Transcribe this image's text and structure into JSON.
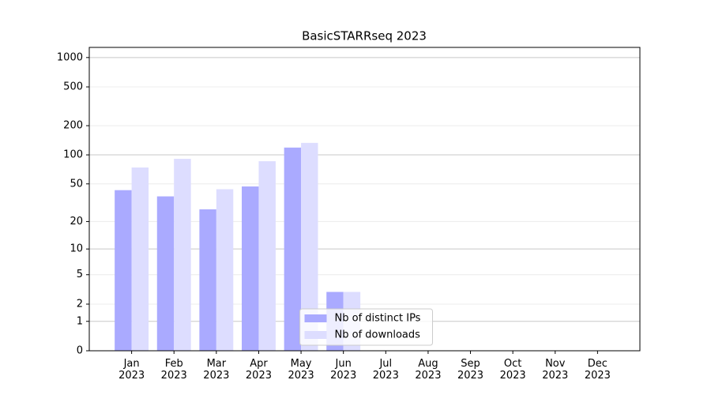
{
  "chart_data": {
    "type": "bar",
    "title": "BasicSTARRseq 2023",
    "categories": [
      "Jan\n2023",
      "Feb\n2023",
      "Mar\n2023",
      "Apr\n2023",
      "May\n2023",
      "Jun\n2023",
      "Jul\n2023",
      "Aug\n2023",
      "Sep\n2023",
      "Oct\n2023",
      "Nov\n2023",
      "Dec\n2023"
    ],
    "series": [
      {
        "name": "Nb of distinct IPs",
        "color": "#aaaaff",
        "values": [
          43,
          37,
          27,
          47,
          119,
          3,
          0,
          0,
          0,
          0,
          0,
          0
        ]
      },
      {
        "name": "Nb of downloads",
        "color": "#ddddff",
        "values": [
          74,
          91,
          44,
          86,
          133,
          3,
          0,
          0,
          0,
          0,
          0,
          0
        ]
      }
    ],
    "yscale": "log1p",
    "ylim": [
      0,
      1270
    ],
    "yticks": [
      0,
      1,
      2,
      5,
      10,
      20,
      50,
      100,
      200,
      500,
      1000
    ],
    "grid": true,
    "legend": "lower center"
  }
}
